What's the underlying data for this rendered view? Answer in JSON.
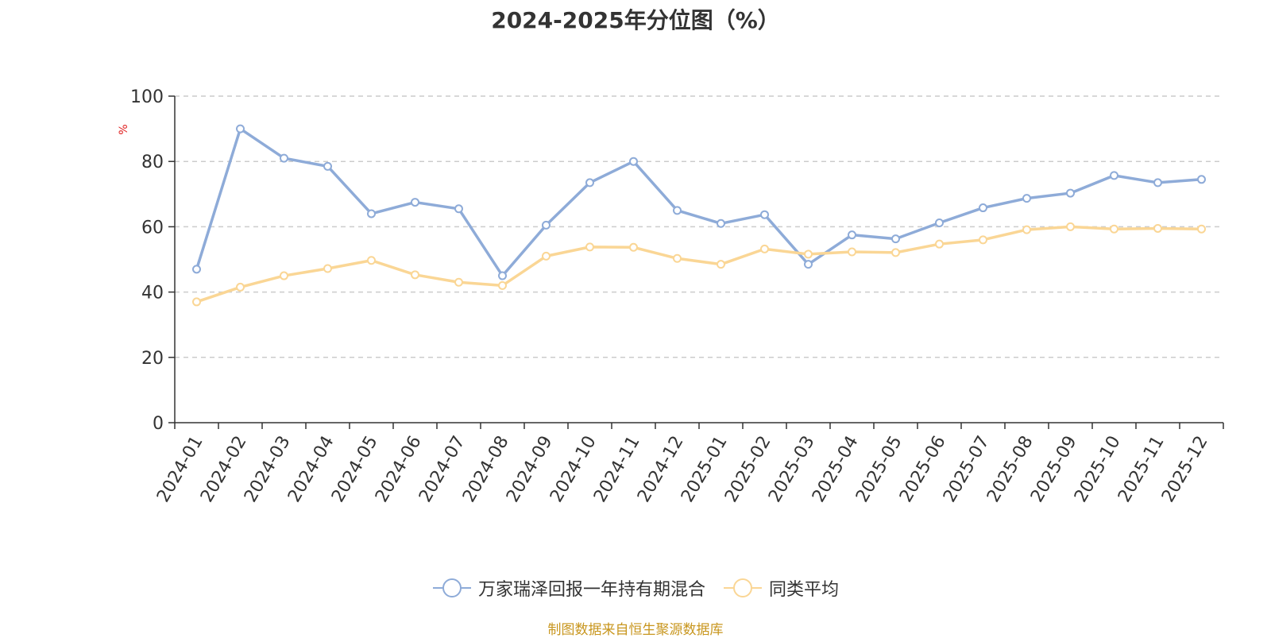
{
  "chart_data": {
    "type": "line",
    "title": "2024-2025年分位图（%）",
    "ylabel": "%",
    "xlabel": "",
    "ylim": [
      0,
      100
    ],
    "yticks": [
      "0",
      "20",
      "40",
      "60",
      "80",
      "100"
    ],
    "grid": true,
    "legend_position": "bottom",
    "categories": [
      "2024-01",
      "2024-02",
      "2024-03",
      "2024-04",
      "2024-05",
      "2024-06",
      "2024-07",
      "2024-08",
      "2024-09",
      "2024-10",
      "2024-11",
      "2024-12",
      "2025-01",
      "2025-02",
      "2025-03",
      "2025-04",
      "2025-05",
      "2025-06",
      "2025-07",
      "2025-08",
      "2025-09",
      "2025-10",
      "2025-11",
      "2025-12"
    ],
    "series": [
      {
        "name": "万家瑞泽回报一年持有期混合",
        "color": "#8eabd8",
        "values": [
          47,
          90,
          81,
          78.5,
          64,
          67.5,
          65.5,
          45,
          60.5,
          73.5,
          80,
          65,
          61,
          63.7,
          48.5,
          57.5,
          56.3,
          61.2,
          65.8,
          68.7,
          70.3,
          75.7,
          73.5,
          74.5
        ]
      },
      {
        "name": "同类平均",
        "color": "#fad695",
        "values": [
          37,
          41.5,
          45,
          47.2,
          49.7,
          45.3,
          43,
          42,
          51,
          53.8,
          53.7,
          50.3,
          48.5,
          53.2,
          51.6,
          52.3,
          52.1,
          54.7,
          56,
          59.1,
          60,
          59.3,
          59.5,
          59.3
        ]
      }
    ]
  },
  "source": "制图数据来自恒生聚源数据库"
}
